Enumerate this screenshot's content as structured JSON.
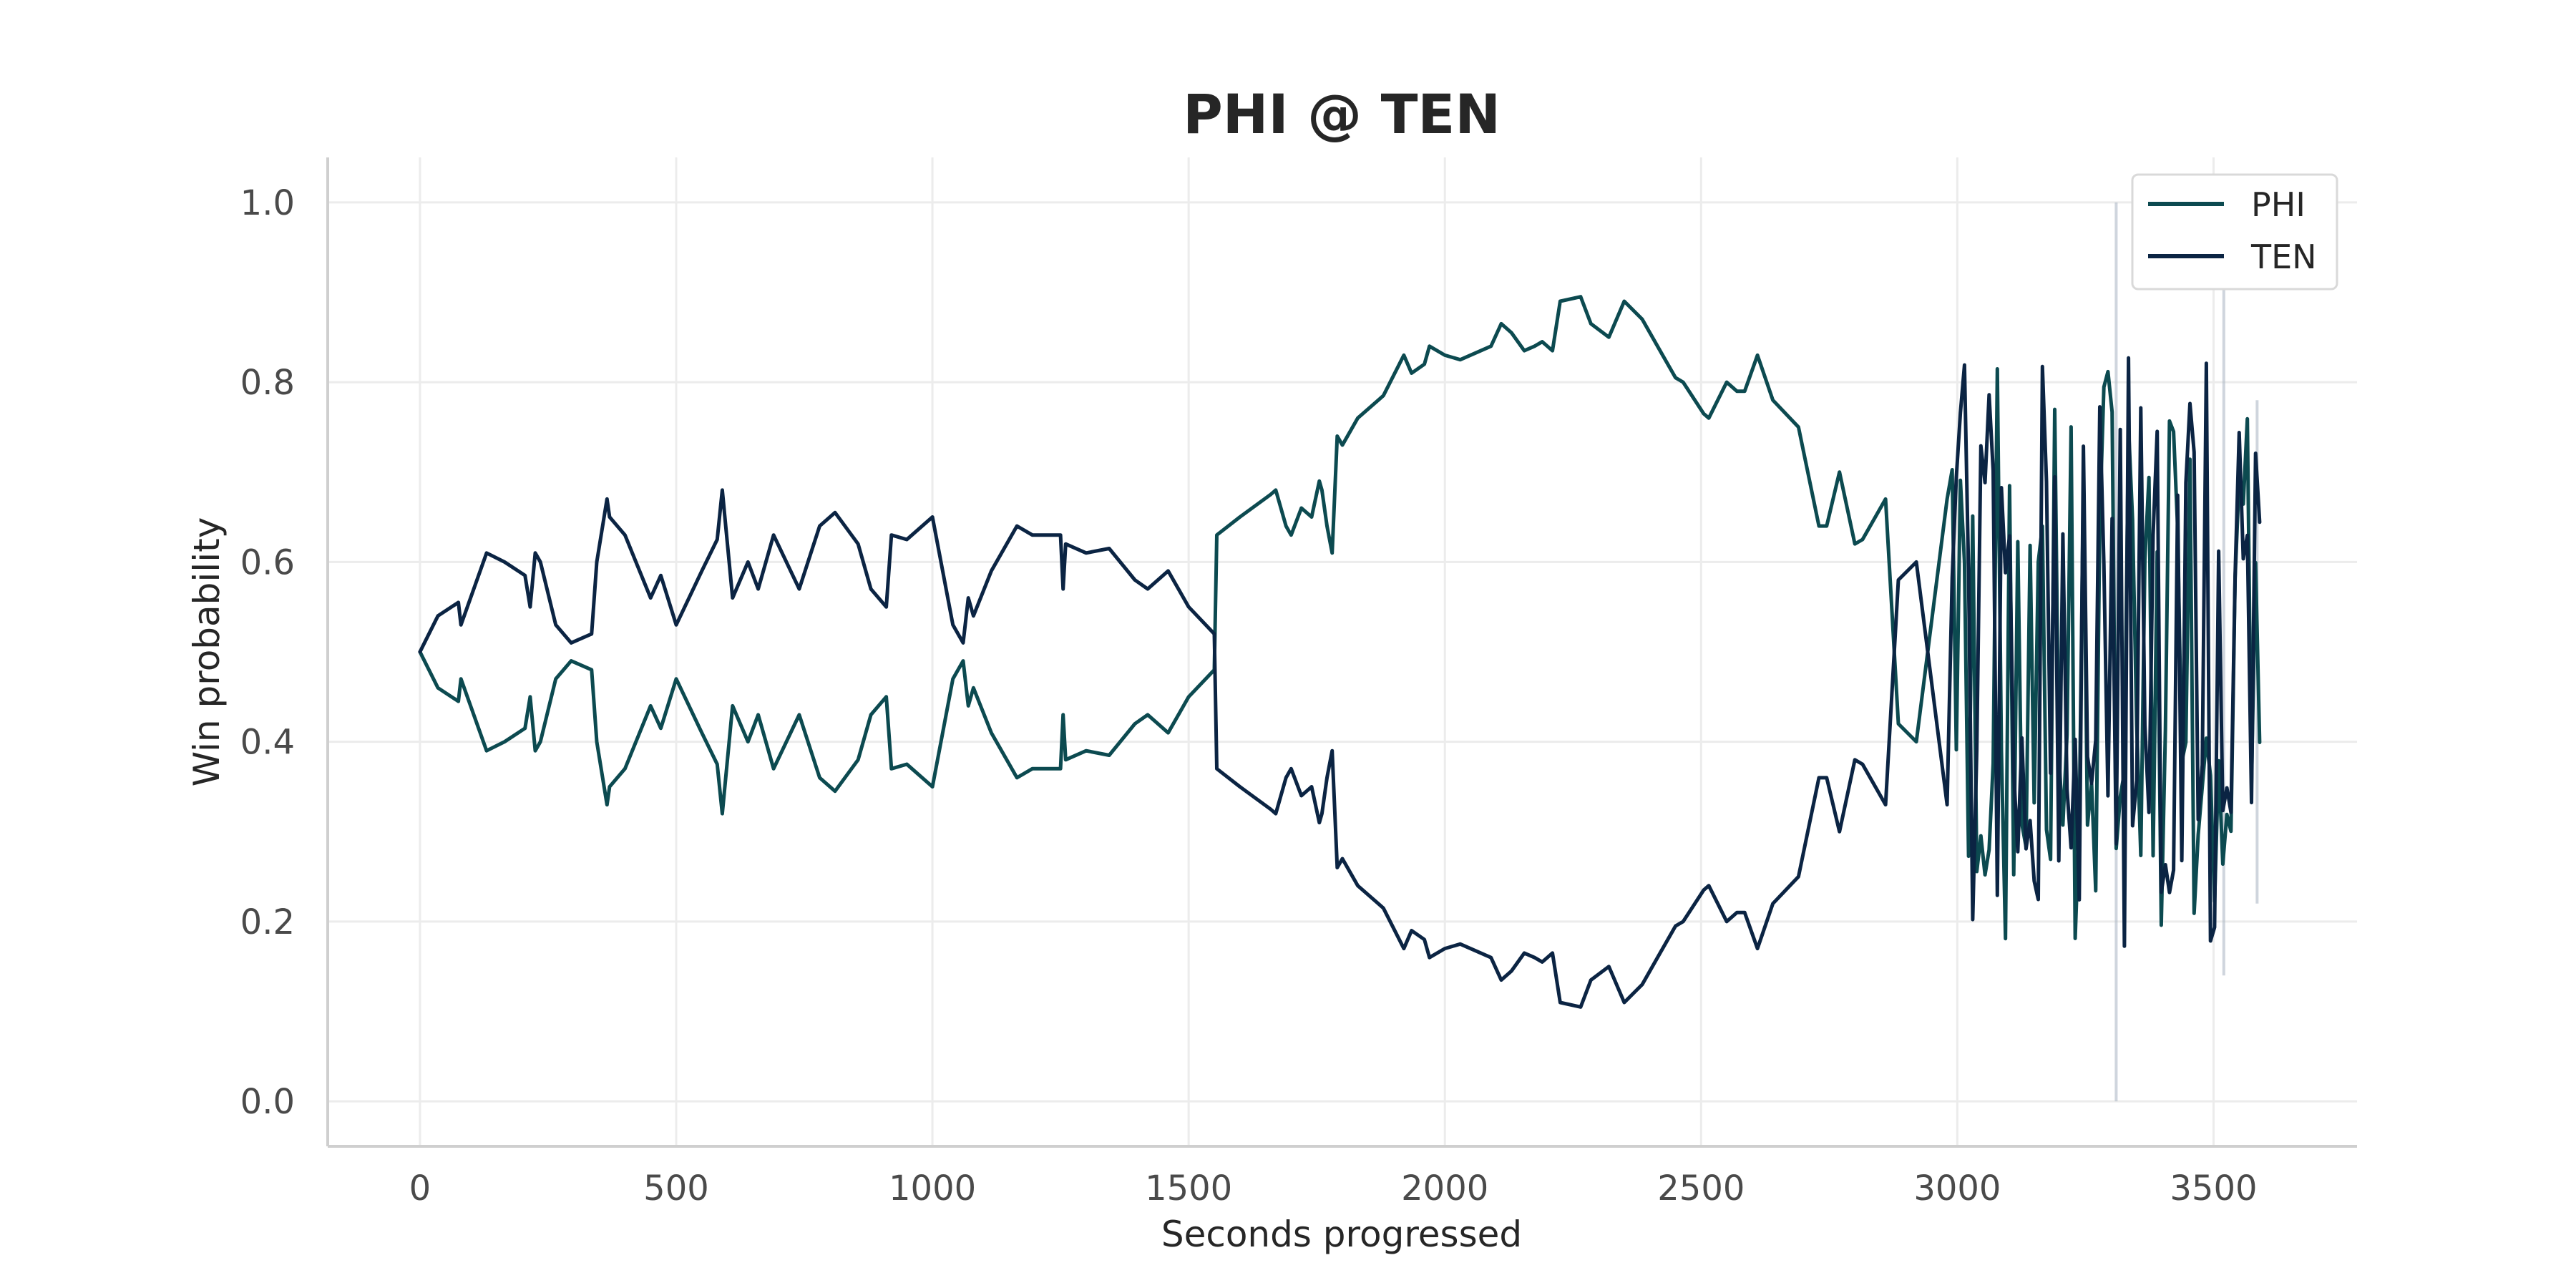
{
  "chart_data": {
    "type": "line",
    "title": "PHI @ TEN",
    "xlabel": "Seconds progressed",
    "ylabel": "Win probability",
    "xlim": [
      -180,
      3780
    ],
    "ylim": [
      -0.05,
      1.05
    ],
    "xticks": [
      0,
      500,
      1000,
      1500,
      2000,
      2500,
      3000,
      3500
    ],
    "yticks": [
      0.0,
      0.2,
      0.4,
      0.6,
      0.8,
      1.0
    ],
    "xtick_labels": [
      "0",
      "500",
      "1000",
      "1500",
      "2000",
      "2500",
      "3000",
      "3500"
    ],
    "ytick_labels": [
      "0.0",
      "0.2",
      "0.4",
      "0.6",
      "0.8",
      "1.0"
    ],
    "grid": true,
    "legend_position": "top-right",
    "colors": {
      "PHI": "#0c4a50",
      "TEN": "#0b2443"
    },
    "series": [
      {
        "name": "PHI",
        "color": "#0c4a50",
        "x": [
          0,
          35,
          75,
          80,
          130,
          165,
          205,
          215,
          225,
          235,
          265,
          295,
          335,
          345,
          365,
          370,
          400,
          450,
          470,
          500,
          550,
          580,
          590,
          610,
          640,
          660,
          690,
          740,
          780,
          810,
          855,
          880,
          910,
          920,
          950,
          1000,
          1040,
          1060,
          1070,
          1080,
          1115,
          1165,
          1195,
          1250,
          1255,
          1260,
          1300,
          1345,
          1395,
          1420,
          1460,
          1500,
          1550,
          1555,
          1600,
          1660,
          1670,
          1690,
          1700,
          1720,
          1740,
          1755,
          1760,
          1770,
          1780,
          1790,
          1800,
          1830,
          1870,
          1880,
          1920,
          1935,
          1960,
          1970,
          2000,
          2030,
          2090,
          2110,
          2130,
          2155,
          2175,
          2190,
          2210,
          2225,
          2265,
          2285,
          2320,
          2350,
          2385,
          2420,
          2450,
          2465,
          2505,
          2515,
          2550,
          2570,
          2585,
          2610,
          2640,
          2690,
          2730,
          2740,
          2745,
          2770,
          2800,
          2815,
          2860,
          2885,
          2920,
          2980
        ],
        "y": [
          0.5,
          0.46,
          0.445,
          0.47,
          0.39,
          0.4,
          0.415,
          0.45,
          0.39,
          0.4,
          0.47,
          0.49,
          0.48,
          0.4,
          0.33,
          0.35,
          0.37,
          0.44,
          0.415,
          0.47,
          0.41,
          0.375,
          0.32,
          0.44,
          0.4,
          0.43,
          0.37,
          0.43,
          0.36,
          0.345,
          0.38,
          0.43,
          0.45,
          0.37,
          0.375,
          0.35,
          0.47,
          0.49,
          0.44,
          0.46,
          0.41,
          0.36,
          0.37,
          0.37,
          0.43,
          0.38,
          0.39,
          0.385,
          0.42,
          0.43,
          0.41,
          0.45,
          0.48,
          0.63,
          0.65,
          0.675,
          0.68,
          0.64,
          0.63,
          0.66,
          0.65,
          0.69,
          0.68,
          0.64,
          0.61,
          0.74,
          0.73,
          0.76,
          0.78,
          0.785,
          0.83,
          0.81,
          0.82,
          0.84,
          0.83,
          0.825,
          0.84,
          0.865,
          0.855,
          0.835,
          0.84,
          0.845,
          0.835,
          0.89,
          0.895,
          0.865,
          0.85,
          0.89,
          0.87,
          0.835,
          0.805,
          0.8,
          0.765,
          0.76,
          0.8,
          0.79,
          0.79,
          0.83,
          0.78,
          0.75,
          0.64,
          0.64,
          0.64,
          0.7,
          0.62,
          0.625,
          0.67,
          0.42,
          0.4,
          0.67
        ]
      },
      {
        "name": "TEN",
        "color": "#0b2443",
        "x": [
          0,
          35,
          75,
          80,
          130,
          165,
          205,
          215,
          225,
          235,
          265,
          295,
          335,
          345,
          365,
          370,
          400,
          450,
          470,
          500,
          550,
          580,
          590,
          610,
          640,
          660,
          690,
          740,
          780,
          810,
          855,
          880,
          910,
          920,
          950,
          1000,
          1040,
          1060,
          1070,
          1080,
          1115,
          1165,
          1195,
          1250,
          1255,
          1260,
          1300,
          1345,
          1395,
          1420,
          1460,
          1500,
          1550,
          1555,
          1600,
          1660,
          1670,
          1690,
          1700,
          1720,
          1740,
          1755,
          1760,
          1770,
          1780,
          1790,
          1800,
          1830,
          1870,
          1880,
          1920,
          1935,
          1960,
          1970,
          2000,
          2030,
          2090,
          2110,
          2130,
          2155,
          2175,
          2190,
          2210,
          2225,
          2265,
          2285,
          2320,
          2350,
          2385,
          2420,
          2450,
          2465,
          2505,
          2515,
          2550,
          2570,
          2585,
          2610,
          2640,
          2690,
          2730,
          2740,
          2745,
          2770,
          2800,
          2815,
          2860,
          2885,
          2920,
          2980
        ],
        "y": [
          0.5,
          0.54,
          0.555,
          0.53,
          0.61,
          0.6,
          0.585,
          0.55,
          0.61,
          0.6,
          0.53,
          0.51,
          0.52,
          0.6,
          0.67,
          0.65,
          0.63,
          0.56,
          0.585,
          0.53,
          0.59,
          0.625,
          0.68,
          0.56,
          0.6,
          0.57,
          0.63,
          0.57,
          0.64,
          0.655,
          0.62,
          0.57,
          0.55,
          0.63,
          0.625,
          0.65,
          0.53,
          0.51,
          0.56,
          0.54,
          0.59,
          0.64,
          0.63,
          0.63,
          0.57,
          0.62,
          0.61,
          0.615,
          0.58,
          0.57,
          0.59,
          0.55,
          0.52,
          0.37,
          0.35,
          0.325,
          0.32,
          0.36,
          0.37,
          0.34,
          0.35,
          0.31,
          0.32,
          0.36,
          0.39,
          0.26,
          0.27,
          0.24,
          0.22,
          0.215,
          0.17,
          0.19,
          0.18,
          0.16,
          0.17,
          0.175,
          0.16,
          0.135,
          0.145,
          0.165,
          0.16,
          0.155,
          0.165,
          0.11,
          0.105,
          0.135,
          0.15,
          0.11,
          0.13,
          0.165,
          0.195,
          0.2,
          0.235,
          0.24,
          0.2,
          0.21,
          0.21,
          0.17,
          0.22,
          0.25,
          0.36,
          0.36,
          0.36,
          0.3,
          0.38,
          0.375,
          0.33,
          0.58,
          0.6,
          0.33
        ]
      }
    ]
  }
}
